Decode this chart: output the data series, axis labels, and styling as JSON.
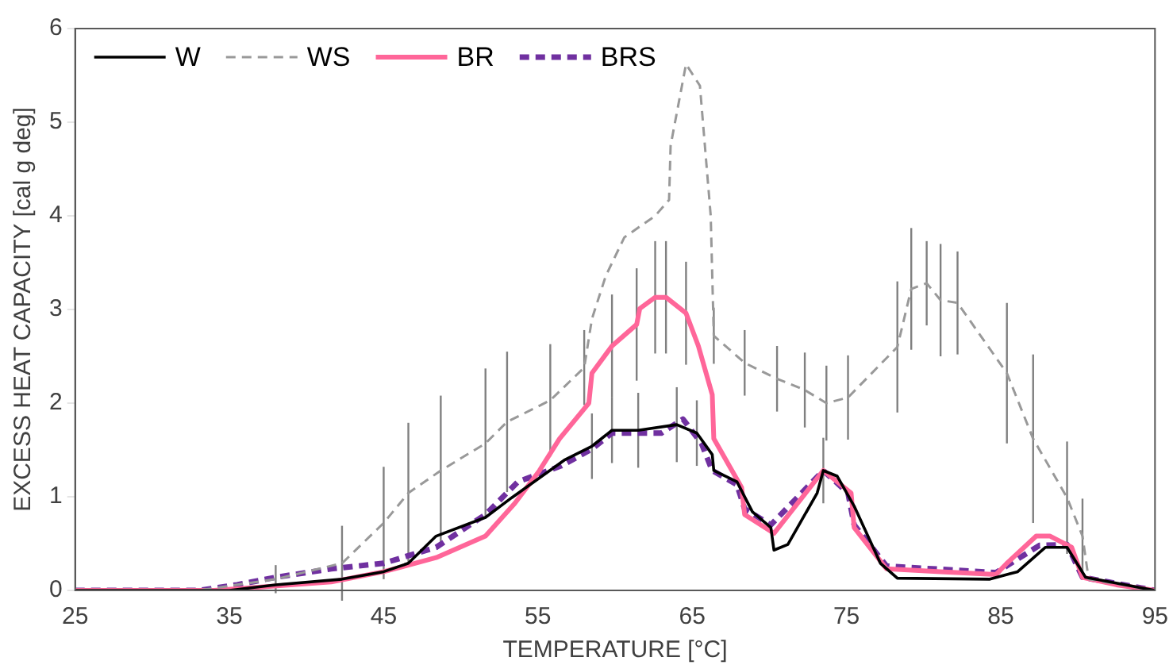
{
  "chart_data": {
    "type": "line",
    "xlabel": "TEMPERATURE [°C]",
    "ylabel": "EXCESS HEAT CAPACITY [cal g deg]",
    "xlim": [
      25,
      95
    ],
    "xticks": [
      25,
      35,
      45,
      55,
      65,
      75,
      85,
      95
    ],
    "ylim": [
      0,
      6
    ],
    "yticks": [
      0,
      1,
      2,
      3,
      4,
      5,
      6
    ],
    "grid": false,
    "legend": "top left",
    "marker": "none",
    "series": [
      {
        "name": "W",
        "color": "#000000",
        "line_style": "solid",
        "x": [
          25,
          35,
          38,
          42.3,
          45,
          46.6,
          48.4,
          51.6,
          53.3,
          56.7,
          58.5,
          59.8,
          61.5,
          64,
          65.3,
          66.3,
          66.4,
          67.9,
          68.9,
          70.1,
          70.3,
          71.2,
          73.1,
          73.5,
          74.4,
          75.5,
          77.2,
          78.3,
          84.3,
          86.1,
          87.9,
          89.3,
          90.5,
          95
        ],
        "values": [
          0,
          0,
          0.06,
          0.12,
          0.2,
          0.29,
          0.58,
          0.78,
          0.99,
          1.39,
          1.54,
          1.71,
          1.71,
          1.77,
          1.68,
          1.45,
          1.28,
          1.16,
          0.84,
          0.67,
          0.43,
          0.49,
          1.04,
          1.28,
          1.22,
          0.9,
          0.29,
          0.13,
          0.12,
          0.2,
          0.46,
          0.46,
          0.14,
          0
        ],
        "errors": [
          null,
          null,
          null,
          null,
          null,
          null,
          null,
          null,
          null,
          null,
          0.35,
          0.35,
          0.4,
          0.4,
          0.35,
          null,
          null,
          null,
          null,
          null,
          null,
          null,
          null,
          0.35,
          null,
          null,
          null,
          null,
          null,
          null,
          null,
          null,
          null,
          null
        ]
      },
      {
        "name": "WS",
        "color": "#999999",
        "line_style": "dashed",
        "x": [
          25,
          33,
          38,
          42.3,
          45,
          46.6,
          48.7,
          51.6,
          53,
          55.8,
          58,
          58.5,
          59.4,
          60.6,
          62.6,
          63.5,
          63.6,
          64.6,
          65.5,
          66.2,
          66.4,
          68.4,
          70.5,
          72.3,
          73.7,
          75.1,
          78.3,
          79.2,
          80.2,
          81.1,
          82.2,
          85.4,
          87.1,
          89.3,
          90.3,
          90.7,
          95
        ],
        "values": [
          0,
          0,
          0.12,
          0.29,
          0.72,
          1.04,
          1.28,
          1.57,
          1.8,
          2.03,
          2.38,
          2.9,
          3.36,
          3.77,
          4.0,
          4.17,
          4.75,
          5.62,
          5.39,
          4.0,
          2.72,
          2.43,
          2.26,
          2.14,
          2.0,
          2.06,
          2.6,
          3.22,
          3.28,
          3.1,
          3.07,
          2.32,
          1.62,
          0.99,
          0.58,
          0.12,
          0
        ],
        "errors": [
          null,
          null,
          0.15,
          0.4,
          0.6,
          0.75,
          0.8,
          0.8,
          0.75,
          0.6,
          0.4,
          null,
          null,
          null,
          null,
          null,
          null,
          null,
          null,
          null,
          0.3,
          0.35,
          0.35,
          0.4,
          0.4,
          0.45,
          0.7,
          0.65,
          0.45,
          0.6,
          0.55,
          0.75,
          0.9,
          0.6,
          0.4,
          null,
          null
        ]
      },
      {
        "name": "BR",
        "color": "#ff6699",
        "line_style": "solid",
        "x": [
          25,
          34,
          41.6,
          45,
          48.4,
          51.6,
          53.5,
          55.1,
          56.4,
          58.3,
          58.5,
          59.8,
          61.4,
          61.6,
          62.6,
          63.3,
          64.6,
          65.4,
          66.3,
          66.4,
          68.2,
          68.4,
          70.3,
          73.5,
          75.3,
          75.5,
          77.6,
          81.1,
          84.7,
          85.4,
          87.3,
          88.2,
          89.6,
          90.3,
          92.5,
          95
        ],
        "values": [
          0,
          0,
          0.09,
          0.2,
          0.35,
          0.58,
          0.93,
          1.28,
          1.62,
          2.0,
          2.32,
          2.61,
          2.84,
          3.01,
          3.13,
          3.13,
          2.96,
          2.61,
          2.09,
          1.62,
          1.1,
          0.81,
          0.61,
          1.28,
          1.04,
          0.67,
          0.23,
          0.2,
          0.17,
          0.29,
          0.58,
          0.58,
          0.46,
          0.14,
          0.06,
          0
        ],
        "errors": [
          null,
          null,
          null,
          null,
          null,
          null,
          null,
          null,
          null,
          null,
          null,
          0.55,
          0.6,
          null,
          0.6,
          0.6,
          0.55,
          null,
          null,
          null,
          null,
          null,
          null,
          null,
          null,
          null,
          null,
          null,
          null,
          null,
          null,
          null,
          null,
          null,
          null,
          null
        ]
      },
      {
        "name": "BRS",
        "color": "#7030a0",
        "line_style": "dashed",
        "x": [
          25,
          33,
          35.5,
          38,
          41.6,
          45,
          48.4,
          51.6,
          53.7,
          56.5,
          58.5,
          59.8,
          63,
          64.4,
          65.6,
          66.3,
          67.9,
          68.4,
          70.1,
          73.5,
          75.1,
          75.5,
          77.6,
          84.7,
          87.5,
          89.3,
          90.3,
          95
        ],
        "values": [
          0,
          0,
          0.06,
          0.14,
          0.23,
          0.29,
          0.46,
          0.81,
          1.16,
          1.33,
          1.51,
          1.68,
          1.68,
          1.83,
          1.57,
          1.28,
          1.13,
          0.87,
          0.7,
          1.28,
          1.04,
          0.7,
          0.26,
          0.19,
          0.48,
          0.49,
          0.14,
          0
        ]
      }
    ]
  }
}
